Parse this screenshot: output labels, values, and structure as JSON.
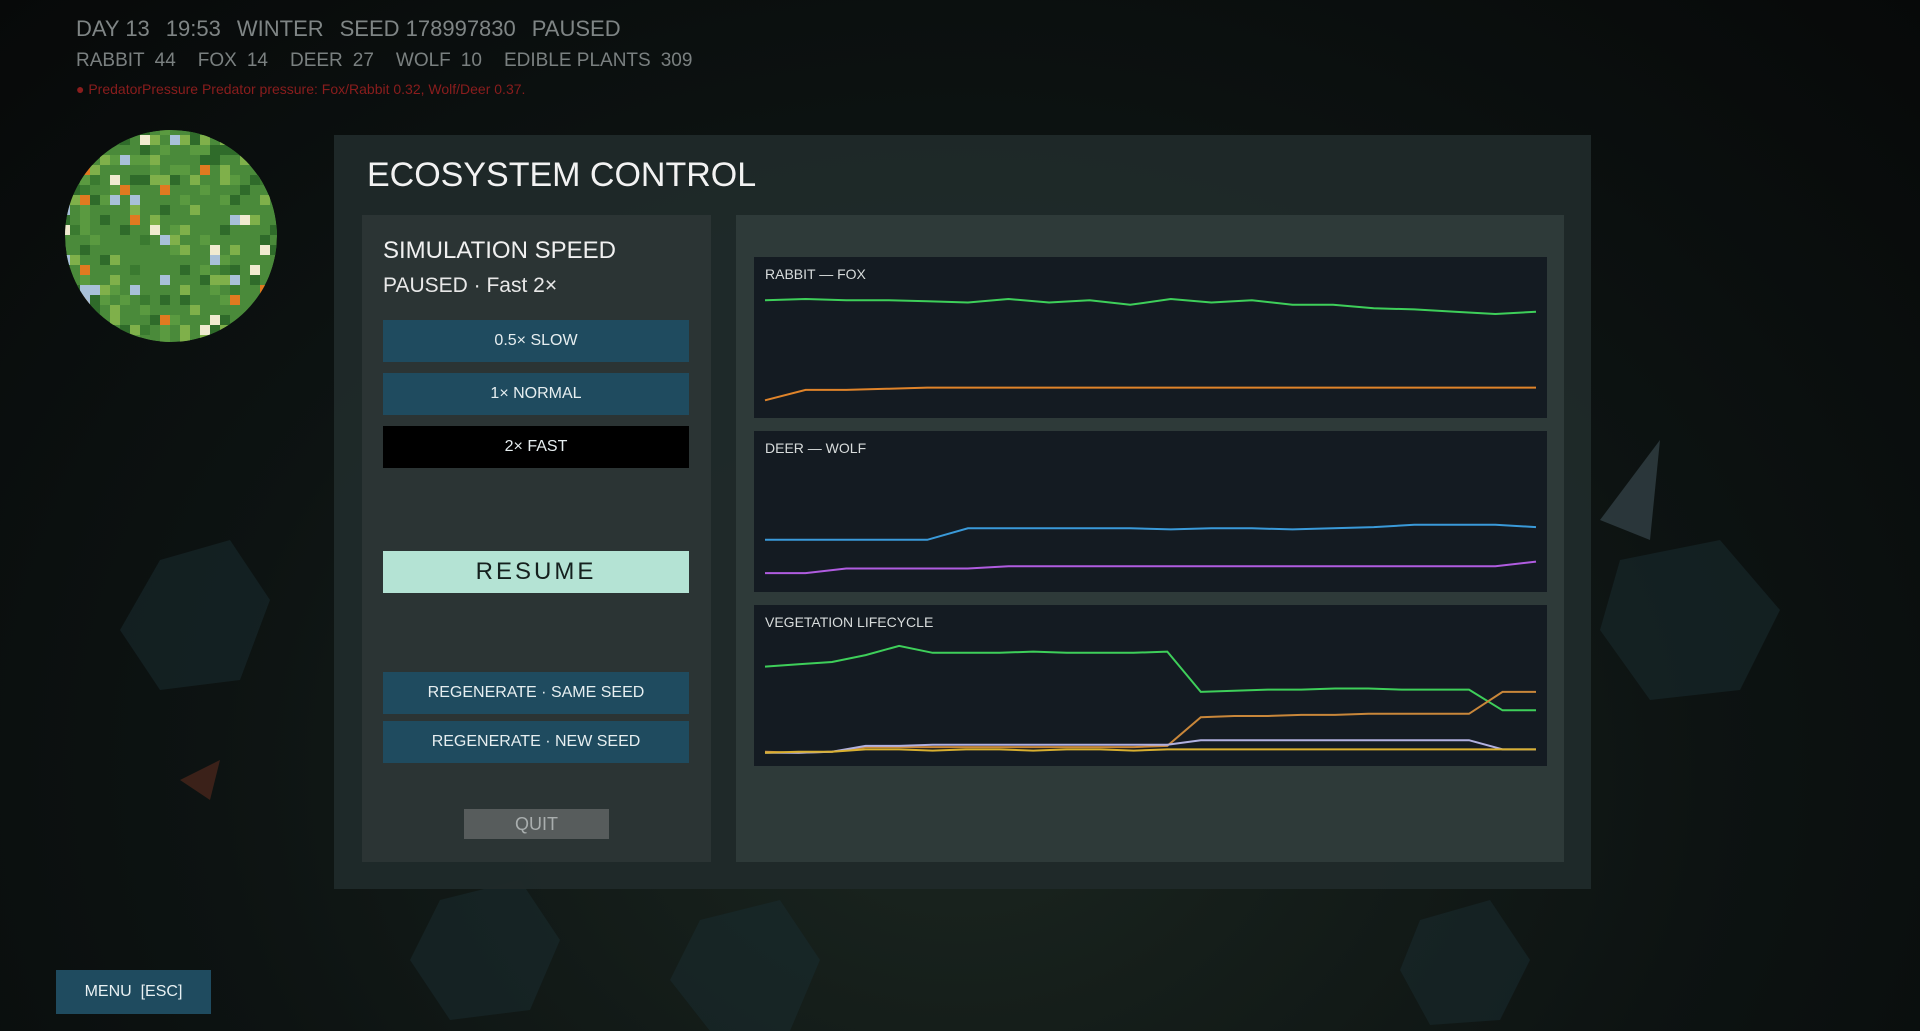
{
  "hud": {
    "status": [
      "DAY 13",
      "19:53",
      "WINTER",
      "SEED 178997830",
      "PAUSED"
    ],
    "populations": [
      {
        "label": "RABBIT",
        "value": 44
      },
      {
        "label": "FOX",
        "value": 14
      },
      {
        "label": "DEER",
        "value": 27
      },
      {
        "label": "WOLF",
        "value": 10
      },
      {
        "label": "EDIBLE PLANTS",
        "value": 309
      }
    ],
    "alert": "● PredatorPressure  Predator pressure: Fox/Rabbit 0.32, Wolf/Deer 0.37."
  },
  "panel": {
    "title": "ECOSYSTEM CONTROL",
    "speed": {
      "heading": "SIMULATION SPEED",
      "status": "PAUSED · Fast 2×",
      "buttons": [
        {
          "label": "0.5× SLOW"
        },
        {
          "label": "1× NORMAL"
        },
        {
          "label": "2× FAST",
          "active": true
        }
      ]
    },
    "resume": "RESUME",
    "regenerate": [
      "REGENERATE · SAME SEED",
      "REGENERATE · NEW SEED"
    ],
    "quit": "QUIT"
  },
  "menu": "MENU  [ESC]",
  "chart_data": [
    {
      "type": "line",
      "title": "RABBIT — FOX",
      "ylim": [
        0,
        100
      ],
      "series": [
        {
          "color": "#3ecf5a",
          "values": [
            92,
            93,
            92,
            92,
            91,
            90,
            93,
            90,
            92,
            88,
            93,
            90,
            92,
            88,
            88,
            85,
            84,
            82,
            80,
            82
          ]
        },
        {
          "color": "#e0842a",
          "values": [
            5,
            14,
            14,
            15,
            16,
            16,
            16,
            16,
            16,
            16,
            16,
            16,
            16,
            16,
            16,
            16,
            16,
            16,
            16,
            16
          ]
        }
      ]
    },
    {
      "type": "line",
      "title": "DEER — WOLF",
      "ylim": [
        0,
        100
      ],
      "series": [
        {
          "color": "#3a9ad9",
          "values": [
            35,
            35,
            35,
            35,
            35,
            45,
            45,
            45,
            45,
            45,
            44,
            45,
            45,
            44,
            45,
            46,
            48,
            48,
            48,
            46
          ]
        },
        {
          "color": "#b05ce0",
          "values": [
            6,
            6,
            10,
            10,
            10,
            10,
            12,
            12,
            12,
            12,
            12,
            12,
            12,
            12,
            12,
            12,
            12,
            12,
            12,
            16
          ]
        }
      ]
    },
    {
      "type": "line",
      "title": "VEGETATION LIFECYCLE",
      "ylim": [
        0,
        100
      ],
      "series": [
        {
          "color": "#3ecf5a",
          "values": [
            76,
            78,
            80,
            86,
            94,
            88,
            88,
            88,
            89,
            88,
            88,
            88,
            89,
            54,
            55,
            56,
            56,
            57,
            57,
            56,
            56,
            56,
            38,
            38
          ]
        },
        {
          "color": "#c9873a",
          "values": [
            2,
            1,
            2,
            6,
            6,
            6,
            6,
            6,
            6,
            6,
            6,
            6,
            7,
            32,
            33,
            33,
            34,
            34,
            35,
            35,
            35,
            35,
            54,
            54
          ]
        },
        {
          "color": "#b0b0e0",
          "values": [
            1,
            1,
            2,
            7,
            7,
            8,
            8,
            8,
            8,
            8,
            8,
            8,
            8,
            12,
            12,
            12,
            12,
            12,
            12,
            12,
            12,
            12,
            4,
            4
          ]
        },
        {
          "color": "#d9b030",
          "values": [
            1,
            2,
            2,
            4,
            4,
            3,
            4,
            4,
            3,
            4,
            4,
            3,
            4,
            4,
            4,
            4,
            4,
            4,
            4,
            4,
            4,
            4,
            4,
            4
          ]
        }
      ]
    }
  ]
}
